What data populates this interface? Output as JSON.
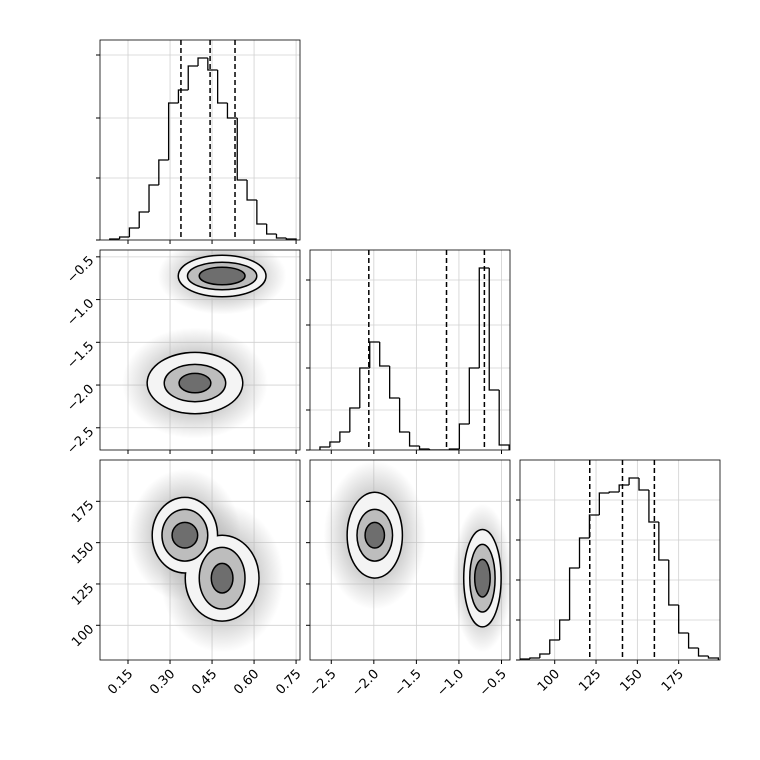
{
  "chart_data": [
    {
      "type": "histogram",
      "color": "#000000",
      "xlim": [
        0.05,
        0.764
      ],
      "xticks": [
        0.15,
        {
          "value": 0.3,
          "label": "0.30"
        },
        0.45,
        {
          "value": 0.6,
          "label": "0.60"
        },
        0.75
      ],
      "show_xtick_labels": false,
      "ylim": [
        0,
        200
      ],
      "yticks": [
        0,
        62,
        122,
        185
      ],
      "show_ytick_labels": false,
      "bins": [
        0.085,
        0.12,
        0.155,
        0.19,
        0.225,
        0.26,
        0.295,
        0.33,
        0.365,
        0.4,
        0.435,
        0.47,
        0.505,
        0.54,
        0.575,
        0.61,
        0.645,
        0.68,
        0.715,
        0.75
      ],
      "counts": [
        1,
        3,
        12,
        28,
        55,
        80,
        137,
        150,
        174,
        182,
        170,
        137,
        122,
        60,
        40,
        16,
        6,
        2,
        1
      ],
      "quantiles": [
        0.339,
        0.443,
        0.532
      ]
    },
    {
      "type": "contour",
      "fills": [
        "#b0b0b0",
        "#f4f4f4",
        "#bdbdbd",
        "#6e6e6e"
      ],
      "xlim": [
        0.05,
        0.764
      ],
      "xticks": [
        0.15,
        {
          "value": 0.3,
          "label": "0.30"
        },
        0.45,
        {
          "value": 0.6,
          "label": "0.60"
        },
        0.75
      ],
      "show_xtick_labels": false,
      "ylim": [
        -2.76,
        -0.42
      ],
      "yticks": [
        {
          "value": -2.5,
          "label": "−2.5"
        },
        {
          "value": -2.0,
          "label": "−2.0"
        },
        {
          "value": -1.5,
          "label": "−1.5"
        },
        {
          "value": -1.0,
          "label": "−1.0"
        },
        {
          "value": -0.5,
          "label": "−0.5"
        }
      ],
      "show_ytick_labels": true,
      "clusters": [
        {
          "x": 0.486,
          "y": -0.724,
          "levels": [
            {
              "rx": 0.23,
              "ry": 0.45
            },
            {
              "rx": 0.154,
              "ry": 0.234
            },
            {
              "rx": 0.121,
              "ry": 0.152
            },
            {
              "rx": 0.079,
              "ry": 0.094
            }
          ]
        },
        {
          "x": 0.389,
          "y": -1.977,
          "levels": [
            {
              "rx": 0.26,
              "ry": 0.65
            },
            {
              "rx": 0.168,
              "ry": 0.35
            },
            {
              "rx": 0.107,
              "ry": 0.21
            },
            {
              "rx": 0.054,
              "ry": 0.105
            }
          ]
        }
      ]
    },
    {
      "type": "histogram",
      "color": "#000000",
      "xlim": [
        -2.75,
        -0.4
      ],
      "xticks": [
        {
          "value": -2.5,
          "label": "−2.5"
        },
        {
          "value": -2.0,
          "label": "−2.0"
        },
        {
          "value": -1.5,
          "label": "−1.5"
        },
        {
          "value": -1.0,
          "label": "−1.0"
        },
        {
          "value": -0.5,
          "label": "−0.5"
        }
      ],
      "show_xtick_labels": false,
      "ylim": [
        0,
        200
      ],
      "yticks": [
        0,
        40,
        82,
        125,
        170
      ],
      "show_ytick_labels": false,
      "bins": [
        -2.633,
        -2.516,
        -2.399,
        -2.282,
        -2.165,
        -2.048,
        -1.931,
        -1.814,
        -1.697,
        -1.58,
        -1.463,
        -1.346,
        -1.229,
        -1.112,
        -0.995,
        -0.878,
        -0.761,
        -0.644,
        -0.527,
        -0.41
      ],
      "counts": [
        3,
        8,
        18,
        42,
        82,
        108,
        84,
        52,
        18,
        4,
        1,
        0,
        0,
        1,
        26,
        82,
        182,
        60,
        5
      ],
      "quantiles": [
        -2.059,
        -1.146,
        -0.701
      ]
    },
    {
      "type": "contour",
      "fills": [
        "#b0b0b0",
        "#f4f4f4",
        "#bdbdbd",
        "#6e6e6e"
      ],
      "xlim": [
        0.05,
        0.764
      ],
      "xticks": [
        0.15,
        {
          "value": 0.3,
          "label": "0.30"
        },
        0.45,
        {
          "value": 0.6,
          "label": "0.60"
        },
        0.75
      ],
      "show_xtick_labels": true,
      "ylim": [
        79,
        200
      ],
      "yticks": [
        100,
        125,
        150,
        175
      ],
      "show_ytick_labels": true,
      "clusters": [
        {
          "x": 0.353,
          "y": 154.5,
          "levels": [
            {
              "rx": 0.2,
              "ry": 40
            },
            {
              "rx": 0.114,
              "ry": 22.4
            },
            {
              "rx": 0.079,
              "ry": 15.2
            },
            {
              "rx": 0.043,
              "ry": 7.3
            }
          ]
        },
        {
          "x": 0.486,
          "y": 128.5,
          "levels": [
            {
              "rx": 0.22,
              "ry": 45
            },
            {
              "rx": 0.129,
              "ry": 25.5
            },
            {
              "rx": 0.079,
              "ry": 18.2
            },
            {
              "rx": 0.036,
              "ry": 8.5
            }
          ]
        }
      ]
    },
    {
      "type": "contour",
      "fills": [
        "#b0b0b0",
        "#f4f4f4",
        "#bdbdbd",
        "#6e6e6e"
      ],
      "xlim": [
        -2.75,
        -0.4
      ],
      "xticks": [
        {
          "value": -2.5,
          "label": "−2.5"
        },
        {
          "value": -2.0,
          "label": "−2.0"
        },
        {
          "value": -1.5,
          "label": "−1.5"
        },
        {
          "value": -1.0,
          "label": "−1.0"
        },
        {
          "value": -0.5,
          "label": "−0.5"
        }
      ],
      "show_xtick_labels": true,
      "ylim": [
        79,
        200
      ],
      "yticks": [
        100,
        125,
        150,
        175
      ],
      "show_ytick_labels": false,
      "clusters": [
        {
          "x": -1.989,
          "y": 154.5,
          "levels": [
            {
              "rx": 0.6,
              "ry": 45
            },
            {
              "rx": 0.316,
              "ry": 25.5
            },
            {
              "rx": 0.2,
              "ry": 15.2
            },
            {
              "rx": 0.105,
              "ry": 7.3
            }
          ]
        },
        {
          "x": -0.724,
          "y": 128.5,
          "levels": [
            {
              "rx": 0.35,
              "ry": 45
            },
            {
              "rx": 0.211,
              "ry": 29
            },
            {
              "rx": 0.14,
              "ry": 20
            },
            {
              "rx": 0.082,
              "ry": 10.9
            }
          ]
        }
      ]
    },
    {
      "type": "histogram",
      "color": "#000000",
      "xlim": [
        79,
        200
      ],
      "xticks": [
        100,
        125,
        150,
        175
      ],
      "show_xtick_labels": true,
      "ylim": [
        0,
        200
      ],
      "yticks": [
        0,
        40,
        80,
        120,
        160
      ],
      "show_ytick_labels": false,
      "bins": [
        79,
        85,
        91,
        97,
        103,
        109,
        115,
        121,
        127,
        133,
        139,
        145,
        151,
        157,
        163,
        169,
        175,
        181,
        187,
        193,
        199
      ],
      "counts": [
        1,
        2,
        6,
        20,
        40,
        92,
        122,
        145,
        167,
        168,
        175,
        182,
        170,
        138,
        100,
        55,
        27,
        12,
        4,
        2
      ],
      "quantiles": [
        121.2,
        141,
        160.3
      ]
    }
  ]
}
